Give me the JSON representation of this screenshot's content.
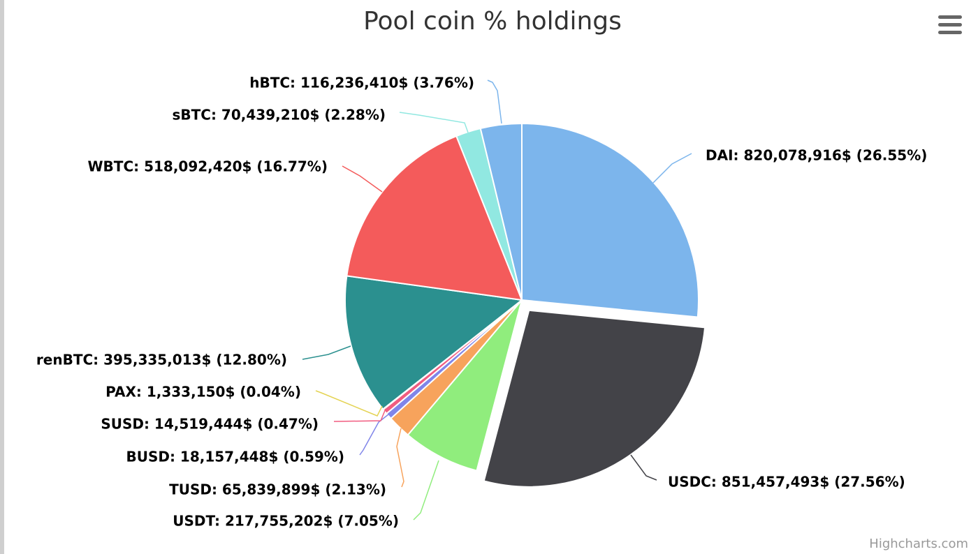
{
  "chart_data": {
    "type": "pie",
    "title": "Pool coin % holdings",
    "slices": [
      {
        "name": "DAI",
        "label": "DAI: 820,078,916$ (26.55%)",
        "value": 820078916,
        "percent": 26.55,
        "color": "#7cb5ec"
      },
      {
        "name": "USDC",
        "label": "USDC: 851,457,493$ (27.56%)",
        "value": 851457493,
        "percent": 27.56,
        "color": "#434348",
        "sliced": true
      },
      {
        "name": "USDT",
        "label": "USDT: 217,755,202$ (7.05%)",
        "value": 217755202,
        "percent": 7.05,
        "color": "#90ed7d"
      },
      {
        "name": "TUSD",
        "label": "TUSD: 65,839,899$ (2.13%)",
        "value": 65839899,
        "percent": 2.13,
        "color": "#f7a35c"
      },
      {
        "name": "BUSD",
        "label": "BUSD: 18,157,448$ (0.59%)",
        "value": 18157448,
        "percent": 0.59,
        "color": "#8085e9"
      },
      {
        "name": "SUSD",
        "label": "SUSD: 14,519,444$ (0.47%)",
        "value": 14519444,
        "percent": 0.47,
        "color": "#f15c80"
      },
      {
        "name": "PAX",
        "label": "PAX: 1,333,150$ (0.04%)",
        "value": 1333150,
        "percent": 0.04,
        "color": "#e4d354"
      },
      {
        "name": "renBTC",
        "label": "renBTC: 395,335,013$ (12.80%)",
        "value": 395335013,
        "percent": 12.8,
        "color": "#2b908f"
      },
      {
        "name": "WBTC",
        "label": "WBTC: 518,092,420$ (16.77%)",
        "value": 518092420,
        "percent": 16.77,
        "color": "#f45b5b"
      },
      {
        "name": "sBTC",
        "label": "sBTC: 70,439,210$ (2.28%)",
        "value": 70439210,
        "percent": 2.28,
        "color": "#91e8e1"
      },
      {
        "name": "hBTC",
        "label": "hBTC: 116,236,410$ (3.76%)",
        "value": 116236410,
        "percent": 3.76,
        "color": "#7cb5ec"
      }
    ]
  },
  "menu": {
    "icon": "hamburger-menu-icon"
  },
  "credits": "Highcharts.com"
}
